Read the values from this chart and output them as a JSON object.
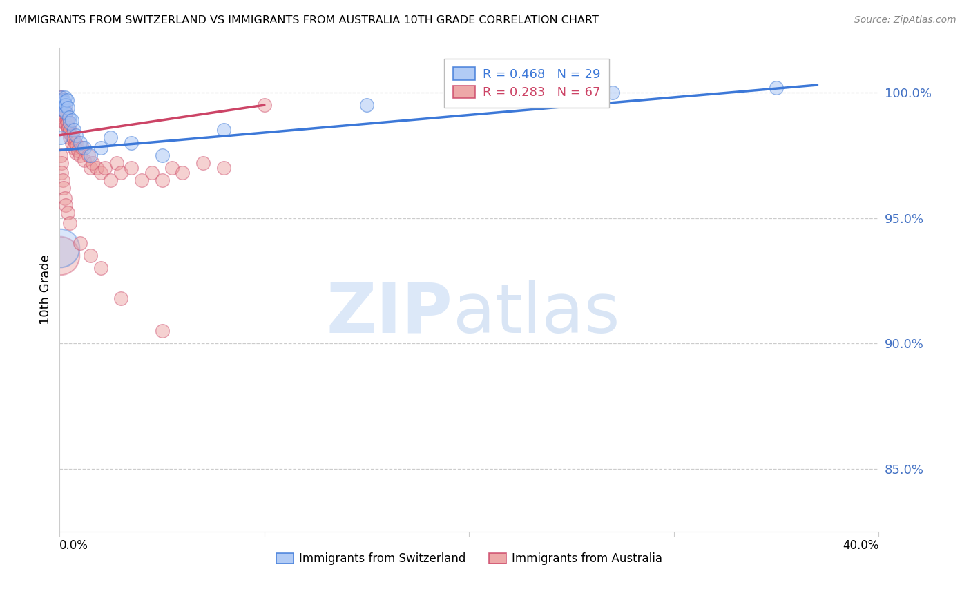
{
  "title": "IMMIGRANTS FROM SWITZERLAND VS IMMIGRANTS FROM AUSTRALIA 10TH GRADE CORRELATION CHART",
  "source": "Source: ZipAtlas.com",
  "ylabel": "10th Grade",
  "yticks": [
    85.0,
    90.0,
    95.0,
    100.0
  ],
  "ytick_labels": [
    "85.0%",
    "90.0%",
    "95.0%",
    "100.0%"
  ],
  "xlim": [
    0.0,
    40.0
  ],
  "ylim": [
    82.5,
    101.8
  ],
  "r_switzerland": 0.468,
  "n_switzerland": 29,
  "r_australia": 0.283,
  "n_australia": 67,
  "color_switzerland": "#a4c2f4",
  "color_australia": "#ea9999",
  "trendline_color_switzerland": "#3c78d8",
  "trendline_color_australia": "#cc4466",
  "watermark_zip": "ZIP",
  "watermark_atlas": "atlas",
  "legend_switzerland": "Immigrants from Switzerland",
  "legend_australia": "Immigrants from Australia",
  "switzerland_x": [
    0.05,
    0.1,
    0.12,
    0.15,
    0.18,
    0.2,
    0.22,
    0.25,
    0.28,
    0.3,
    0.35,
    0.4,
    0.45,
    0.5,
    0.6,
    0.7,
    0.8,
    1.0,
    1.2,
    1.5,
    2.0,
    2.5,
    3.5,
    5.0,
    8.0,
    15.0,
    20.0,
    27.0,
    35.0
  ],
  "switzerland_y": [
    98.2,
    99.8,
    99.5,
    99.6,
    99.7,
    99.3,
    99.6,
    99.8,
    99.5,
    99.2,
    99.7,
    99.4,
    99.0,
    98.8,
    98.9,
    98.5,
    98.3,
    98.0,
    97.8,
    97.5,
    97.8,
    98.2,
    98.0,
    97.5,
    98.5,
    99.5,
    99.8,
    100.0,
    100.2
  ],
  "australia_x": [
    0.03,
    0.05,
    0.06,
    0.08,
    0.09,
    0.1,
    0.12,
    0.13,
    0.15,
    0.17,
    0.18,
    0.2,
    0.22,
    0.25,
    0.27,
    0.3,
    0.33,
    0.35,
    0.38,
    0.4,
    0.42,
    0.45,
    0.48,
    0.5,
    0.55,
    0.6,
    0.65,
    0.7,
    0.75,
    0.8,
    0.85,
    0.9,
    1.0,
    1.1,
    1.2,
    1.4,
    1.5,
    1.6,
    1.8,
    2.0,
    2.2,
    2.5,
    2.8,
    3.0,
    3.5,
    4.0,
    4.5,
    5.0,
    5.5,
    6.0,
    7.0,
    8.0,
    0.05,
    0.08,
    0.1,
    0.15,
    0.2,
    0.25,
    0.3,
    0.4,
    0.5,
    1.0,
    1.5,
    2.0,
    3.0,
    5.0,
    10.0
  ],
  "australia_y": [
    99.5,
    99.8,
    99.6,
    99.7,
    99.3,
    99.5,
    99.4,
    99.6,
    99.2,
    99.0,
    99.3,
    99.1,
    99.4,
    99.0,
    98.8,
    99.2,
    98.7,
    98.9,
    98.5,
    98.8,
    98.6,
    98.4,
    98.2,
    98.5,
    98.3,
    98.0,
    98.2,
    97.8,
    98.0,
    97.6,
    97.9,
    97.7,
    97.5,
    97.8,
    97.3,
    97.5,
    97.0,
    97.2,
    97.0,
    96.8,
    97.0,
    96.5,
    97.2,
    96.8,
    97.0,
    96.5,
    96.8,
    96.5,
    97.0,
    96.8,
    97.2,
    97.0,
    97.5,
    97.2,
    96.8,
    96.5,
    96.2,
    95.8,
    95.5,
    95.2,
    94.8,
    94.0,
    93.5,
    93.0,
    91.8,
    90.5,
    99.5
  ],
  "australia_big_bubble_x": [
    0.02
  ],
  "australia_big_bubble_y": [
    93.5
  ],
  "switzerland_big_bubble_x": [
    0.02
  ],
  "switzerland_big_bubble_y": [
    93.8
  ]
}
